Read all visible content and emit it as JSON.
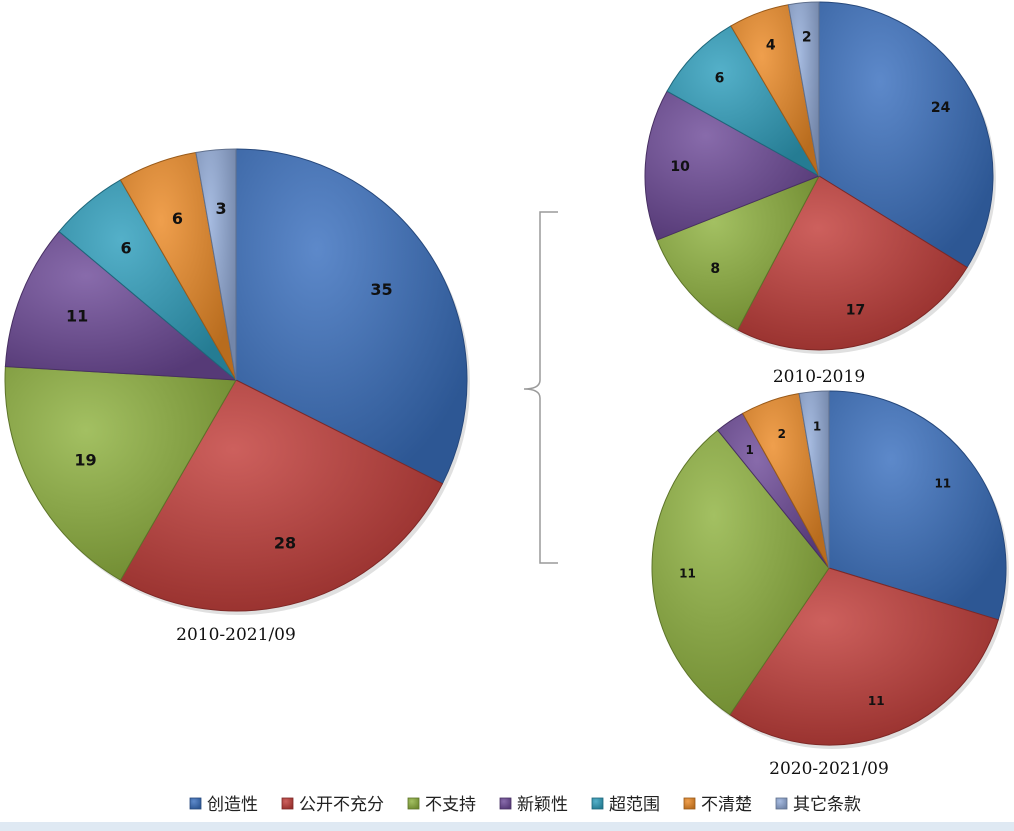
{
  "colors": {
    "创造性": "#3a6fbe",
    "公开不充分": "#c23d3a",
    "不支持": "#8fb23f",
    "新颖性": "#6e4a98",
    "超范围": "#2f9fbd",
    "不清楚": "#ec8a26",
    "其它条款": "#93acd9"
  },
  "chart_data": [
    {
      "type": "pie",
      "caption": "2010-2021/09",
      "categories": [
        "创造性",
        "公开不充分",
        "不支持",
        "新颖性",
        "超范围",
        "不清楚",
        "其它条款"
      ],
      "values": [
        35,
        28,
        19,
        11,
        6,
        6,
        3
      ]
    },
    {
      "type": "pie",
      "caption": "2010-2019",
      "categories": [
        "创造性",
        "公开不充分",
        "不支持",
        "新颖性",
        "超范围",
        "不清楚",
        "其它条款"
      ],
      "values": [
        24,
        17,
        8,
        10,
        6,
        4,
        2
      ]
    },
    {
      "type": "pie",
      "caption": "2020-2021/09",
      "categories": [
        "创造性",
        "公开不充分",
        "不支持",
        "新颖性",
        "不清楚",
        "其它条款"
      ],
      "values": [
        11,
        11,
        11,
        1,
        2,
        1
      ]
    }
  ],
  "legend": {
    "placement": "bottom",
    "items": [
      "创造性",
      "公开不充分",
      "不支持",
      "新颖性",
      "超范围",
      "不清楚",
      "其它条款"
    ]
  }
}
